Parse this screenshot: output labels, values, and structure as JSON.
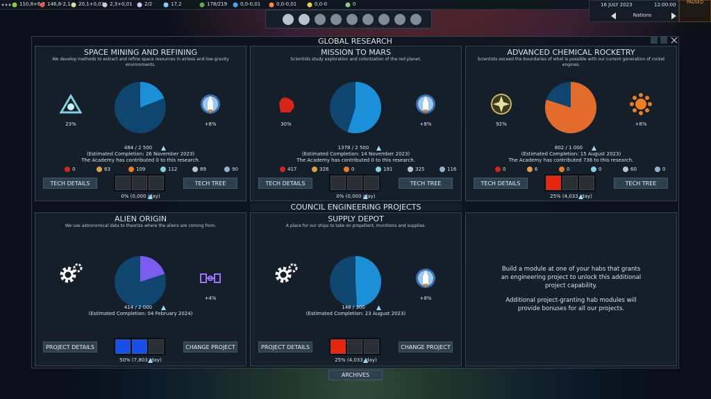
{
  "top_bar": {
    "resources": [
      "110,8+6,2",
      "146,8-2,1",
      "20,1+0,03",
      "2,3+0,01",
      "2/2",
      "17,2",
      "178/219",
      "0,0-0,01",
      "0,0-0,01",
      "0,0-0",
      "0"
    ],
    "date": "16 JULY 2023",
    "time": "12:00:00",
    "status": "PAUSED",
    "nations": "Nations"
  },
  "title": "GLOBAL RESEARCH",
  "research": [
    {
      "title": "SPACE MINING AND REFINING",
      "description": "We develop methods to extract and refine space resources in airless and low-gravity environments.",
      "left_label": "23%",
      "right_label": "+8%",
      "progress": "484 / 2 500",
      "estimate": "(Estimated Completion: 26 November 2023)",
      "academy": "The Academy has contributed 0 to this research.",
      "contributions": [
        "0",
        "83",
        "109",
        "112",
        "89",
        "90"
      ],
      "rate": "0% (0,000 /day)",
      "buttons": [
        "TECH DETAILS",
        "TECH TREE"
      ],
      "slots": [
        "#2a2f35",
        "#2a2f35",
        "#2a2f35"
      ]
    },
    {
      "title": "MISSION TO MARS",
      "description": "Scientists study exploration and colonization of the red planet.",
      "left_label": "30%",
      "right_label": "+8%",
      "progress": "1378 / 2 500",
      "estimate": "(Estimated Completion: 14 November 2023)",
      "academy": "The Academy has contributed 0 to this research.",
      "contributions": [
        "417",
        "328",
        "0",
        "191",
        "325",
        "116"
      ],
      "rate": "0% (0,000 /day)",
      "buttons": [
        "TECH DETAILS",
        "TECH TREE"
      ],
      "slots": [
        "#2a2f35",
        "#2a2f35",
        "#2a2f35"
      ]
    },
    {
      "title": "ADVANCED CHEMICAL ROCKETRY",
      "description": "Scientists exceed the boundaries of what is possible with our current generation of rocket engines.",
      "left_label": "92%",
      "right_label": "+8%",
      "progress": "802 / 1 000",
      "estimate": "(Estimated Completion: 15 August 2023)",
      "academy": "The Academy has contributed 736 to this research.",
      "contributions": [
        "0",
        "6",
        "0",
        "0",
        "60",
        "0"
      ],
      "rate": "25% (4,033 /day)",
      "buttons": [
        "TECH DETAILS",
        "TECH TREE"
      ],
      "slots": [
        "#e8260f",
        "#2a2f35",
        "#2a2f35"
      ]
    }
  ],
  "engineering": {
    "title": "COUNCIL ENGINEERING PROJECTS",
    "projects": [
      {
        "title": "ALIEN ORIGIN",
        "description": "We use astronomical data to theorize where the aliens are coming from.",
        "right_label": "+4%",
        "progress": "414 / 2 000",
        "estimate": "(Estimated Completion: 04 February 2024)",
        "rate": "50% (7,803 /day)",
        "buttons": [
          "PROJECT DETAILS",
          "CHANGE PROJECT"
        ],
        "slots": [
          "#1a4ee8",
          "#1a4ee8",
          "#2a2f35"
        ]
      },
      {
        "title": "SUPPLY DEPOT",
        "description": "A place for our ships to take on propellant, munitions and supplies.",
        "right_label": "+8%",
        "progress": "148 / 300",
        "estimate": "(Estimated Completion: 23 August 2023)",
        "rate": "25% (4,033 /day)",
        "buttons": [
          "PROJECT DETAILS",
          "CHANGE PROJECT"
        ],
        "slots": [
          "#e8260f",
          "#2a2f35",
          "#2a2f35"
        ]
      }
    ],
    "info": [
      "Build a module at one of your habs that grants an engineering project to unlock this additional project capability.",
      "Additional project-granting hab modules will provide bonuses for all our projects."
    ]
  },
  "archives": "ARCHIVES"
}
